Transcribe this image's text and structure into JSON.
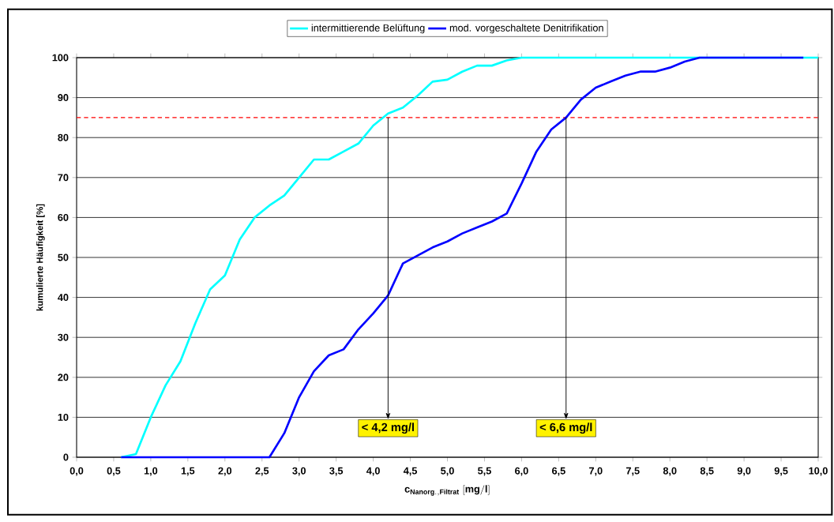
{
  "chart_data": {
    "type": "line",
    "xlabel": "\\mathbf{c}_{\\mathbf{Nanorg.,Filtrat}}\\ \\mathbf{[mg/l]}",
    "ylabel": "kumulierte Häufigkeit [%]",
    "series": [
      {
        "name": "intermittierende Belüftung",
        "color": "#00ffff",
        "x": [
          0.6,
          0.8,
          1.0,
          1.2,
          1.4,
          1.6,
          1.8,
          2.0,
          2.2,
          2.4,
          2.6,
          2.8,
          3.0,
          3.2,
          3.4,
          3.6,
          3.8,
          4.0,
          4.2,
          4.4,
          4.6,
          4.8,
          5.0,
          5.2,
          5.4,
          5.6,
          5.8,
          6.0,
          7.0,
          8.0,
          9.0,
          10.0
        ],
        "values": [
          0,
          0.8,
          10,
          18,
          24,
          33.5,
          42,
          45.5,
          54.5,
          60,
          63,
          65.5,
          70,
          74.5,
          74.5,
          76.5,
          78.5,
          83,
          86,
          87.5,
          90.5,
          94,
          94.5,
          96.5,
          98,
          98,
          99.3,
          100,
          100,
          100,
          100,
          100
        ]
      },
      {
        "name": "mod. vorgeschaltete Denitrifikation",
        "color": "#0000ff",
        "x": [
          0.6,
          2.6,
          2.8,
          3.0,
          3.2,
          3.4,
          3.6,
          3.8,
          4.0,
          4.2,
          4.4,
          4.6,
          4.8,
          5.0,
          5.2,
          5.4,
          5.6,
          5.8,
          6.0,
          6.2,
          6.4,
          6.6,
          6.8,
          7.0,
          7.2,
          7.4,
          7.6,
          7.8,
          8.0,
          8.2,
          8.4,
          9.0,
          9.8
        ],
        "values": [
          0,
          0,
          6,
          15,
          21.5,
          25.5,
          27,
          32,
          36,
          40.5,
          48.5,
          50.5,
          52.5,
          54,
          56,
          57.5,
          59,
          61,
          68.5,
          76.5,
          82,
          85,
          89.5,
          92.5,
          94,
          95.5,
          96.5,
          96.5,
          97.5,
          99,
          100,
          100,
          100
        ]
      }
    ],
    "xlim": [
      0,
      10
    ],
    "ylim": [
      0,
      100
    ],
    "xticks": [
      {
        "value": 0,
        "label": "0,0"
      },
      {
        "value": 0.5,
        "label": "0,5"
      },
      {
        "value": 1,
        "label": "1,0"
      },
      {
        "value": 1.5,
        "label": "1,5"
      },
      {
        "value": 2,
        "label": "2,0"
      },
      {
        "value": 2.5,
        "label": "2,5"
      },
      {
        "value": 3,
        "label": "3,0"
      },
      {
        "value": 3.5,
        "label": "3,5"
      },
      {
        "value": 4,
        "label": "4,0"
      },
      {
        "value": 4.5,
        "label": "4,5"
      },
      {
        "value": 5,
        "label": "5,0"
      },
      {
        "value": 5.5,
        "label": "5,5"
      },
      {
        "value": 6,
        "label": "6,0"
      },
      {
        "value": 6.5,
        "label": "6,5"
      },
      {
        "value": 7,
        "label": "7,0"
      },
      {
        "value": 7.5,
        "label": "7,5"
      },
      {
        "value": 8,
        "label": "8,0"
      },
      {
        "value": 8.5,
        "label": "8,5"
      },
      {
        "value": 9,
        "label": "9,0"
      },
      {
        "value": 9.5,
        "label": "9,5"
      },
      {
        "value": 10,
        "label": "10,0"
      }
    ],
    "yticks": [
      0,
      10,
      20,
      30,
      40,
      50,
      60,
      70,
      80,
      90,
      100
    ],
    "grid": "y",
    "legend": "top",
    "marker": "none",
    "line_style": "solid",
    "ref_lines": [
      {
        "axis": "y",
        "value": 85,
        "color": "#ff0000",
        "line_style": "dashed"
      }
    ],
    "annotations": [
      {
        "text": "< 4,2 mg/l",
        "x": 4.2,
        "y": 85
      },
      {
        "text": "< 6,6 mg/l",
        "x": 6.6,
        "y": 85
      }
    ]
  }
}
